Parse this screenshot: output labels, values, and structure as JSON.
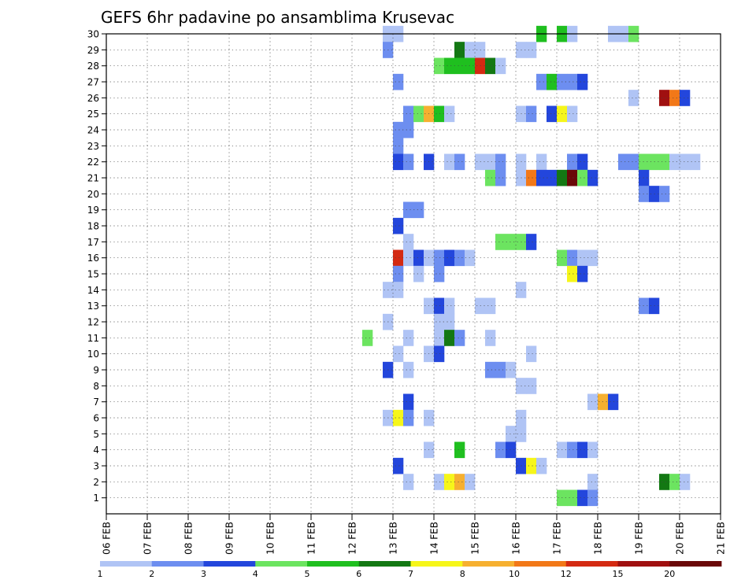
{
  "chart_data": {
    "type": "heatmap",
    "title": "GEFS 6hr padavine po ansamblima Krusevac",
    "x_ticks": [
      "06 FEB",
      "07 FEB",
      "08 FEB",
      "09 FEB",
      "10 FEB",
      "11 FEB",
      "12 FEB",
      "13 FEB",
      "14 FEB",
      "15 FEB",
      "16 FEB",
      "17 FEB",
      "18 FEB",
      "19 FEB",
      "20 FEB",
      "21 FEB"
    ],
    "y_ticks": [
      "1",
      "2",
      "3",
      "4",
      "5",
      "6",
      "7",
      "8",
      "9",
      "10",
      "11",
      "12",
      "13",
      "14",
      "15",
      "16",
      "17",
      "18",
      "19",
      "20",
      "21",
      "22",
      "23",
      "24",
      "25",
      "26",
      "27",
      "28",
      "29",
      "30"
    ],
    "xlim": [
      "06 FEB",
      "21 FEB"
    ],
    "ylim": [
      0,
      30
    ],
    "grid": true,
    "colorbar": {
      "levels": [
        "1",
        "2",
        "3",
        "4",
        "5",
        "6",
        "7",
        "8",
        "10",
        "12",
        "15",
        "20"
      ],
      "colors": [
        "#b0c4f5",
        "#6d8ef0",
        "#2346dc",
        "#6ce460",
        "#1fbf1f",
        "#137813",
        "#f6f61a",
        "#f6b030",
        "#f27818",
        "#d42a12",
        "#a01010",
        "#6a0808"
      ]
    },
    "cells": [
      {
        "m": 30,
        "t": "12 18",
        "c": 0
      },
      {
        "m": 30,
        "t": "13 00",
        "c": 0
      },
      {
        "m": 30,
        "t": "16 12",
        "c": 4
      },
      {
        "m": 30,
        "t": "17 00",
        "c": 4
      },
      {
        "m": 30,
        "t": "17 06",
        "c": 0
      },
      {
        "m": 30,
        "t": "18 06",
        "c": 0
      },
      {
        "m": 30,
        "t": "18 12",
        "c": 0
      },
      {
        "m": 30,
        "t": "18 18",
        "c": 3
      },
      {
        "m": 29,
        "t": "12 18",
        "c": 1
      },
      {
        "m": 29,
        "t": "14 12",
        "c": 5
      },
      {
        "m": 29,
        "t": "14 18",
        "c": 0
      },
      {
        "m": 29,
        "t": "15 00",
        "c": 0
      },
      {
        "m": 29,
        "t": "16 00",
        "c": 0
      },
      {
        "m": 29,
        "t": "16 06",
        "c": 0
      },
      {
        "m": 28,
        "t": "14 00",
        "c": 3
      },
      {
        "m": 28,
        "t": "14 06",
        "c": 4
      },
      {
        "m": 28,
        "t": "14 12",
        "c": 4
      },
      {
        "m": 28,
        "t": "14 18",
        "c": 4
      },
      {
        "m": 28,
        "t": "15 00",
        "c": 9
      },
      {
        "m": 28,
        "t": "15 06",
        "c": 5
      },
      {
        "m": 28,
        "t": "15 12",
        "c": 0
      },
      {
        "m": 27,
        "t": "13 00",
        "c": 1
      },
      {
        "m": 27,
        "t": "16 12",
        "c": 1
      },
      {
        "m": 27,
        "t": "16 18",
        "c": 4
      },
      {
        "m": 27,
        "t": "17 00",
        "c": 1
      },
      {
        "m": 27,
        "t": "17 06",
        "c": 1
      },
      {
        "m": 27,
        "t": "17 12",
        "c": 2
      },
      {
        "m": 26,
        "t": "18 18",
        "c": 0
      },
      {
        "m": 26,
        "t": "19 12",
        "c": 10
      },
      {
        "m": 26,
        "t": "19 18",
        "c": 8
      },
      {
        "m": 26,
        "t": "20 00",
        "c": 2
      },
      {
        "m": 25,
        "t": "13 06",
        "c": 1
      },
      {
        "m": 25,
        "t": "13 12",
        "c": 3
      },
      {
        "m": 25,
        "t": "13 18",
        "c": 7
      },
      {
        "m": 25,
        "t": "14 00",
        "c": 4
      },
      {
        "m": 25,
        "t": "14 06",
        "c": 0
      },
      {
        "m": 25,
        "t": "16 00",
        "c": 0
      },
      {
        "m": 25,
        "t": "16 06",
        "c": 1
      },
      {
        "m": 25,
        "t": "16 18",
        "c": 2
      },
      {
        "m": 25,
        "t": "17 00",
        "c": 6
      },
      {
        "m": 25,
        "t": "17 06",
        "c": 0
      },
      {
        "m": 24,
        "t": "13 00",
        "c": 1
      },
      {
        "m": 24,
        "t": "13 06",
        "c": 1
      },
      {
        "m": 23,
        "t": "13 00",
        "c": 1
      },
      {
        "m": 22,
        "t": "13 00",
        "c": 2
      },
      {
        "m": 22,
        "t": "13 06",
        "c": 1
      },
      {
        "m": 22,
        "t": "13 18",
        "c": 2
      },
      {
        "m": 22,
        "t": "14 06",
        "c": 0
      },
      {
        "m": 22,
        "t": "14 12",
        "c": 1
      },
      {
        "m": 22,
        "t": "15 00",
        "c": 0
      },
      {
        "m": 22,
        "t": "15 06",
        "c": 0
      },
      {
        "m": 22,
        "t": "15 12",
        "c": 1
      },
      {
        "m": 22,
        "t": "16 00",
        "c": 0
      },
      {
        "m": 22,
        "t": "16 12",
        "c": 0
      },
      {
        "m": 22,
        "t": "17 06",
        "c": 1
      },
      {
        "m": 22,
        "t": "17 12",
        "c": 2
      },
      {
        "m": 22,
        "t": "18 12",
        "c": 1
      },
      {
        "m": 22,
        "t": "18 18",
        "c": 1
      },
      {
        "m": 22,
        "t": "19 00",
        "c": 3
      },
      {
        "m": 22,
        "t": "19 06",
        "c": 3
      },
      {
        "m": 22,
        "t": "19 12",
        "c": 3
      },
      {
        "m": 22,
        "t": "19 18",
        "c": 0
      },
      {
        "m": 22,
        "t": "20 00",
        "c": 0
      },
      {
        "m": 22,
        "t": "20 06",
        "c": 0
      },
      {
        "m": 21,
        "t": "15 06",
        "c": 3
      },
      {
        "m": 21,
        "t": "15 12",
        "c": 1
      },
      {
        "m": 21,
        "t": "16 00",
        "c": 0
      },
      {
        "m": 21,
        "t": "16 06",
        "c": 8
      },
      {
        "m": 21,
        "t": "16 12",
        "c": 2
      },
      {
        "m": 21,
        "t": "16 18",
        "c": 2
      },
      {
        "m": 21,
        "t": "17 00",
        "c": 5
      },
      {
        "m": 21,
        "t": "17 06",
        "c": 11
      },
      {
        "m": 21,
        "t": "17 12",
        "c": 3
      },
      {
        "m": 21,
        "t": "17 18",
        "c": 2
      },
      {
        "m": 21,
        "t": "19 00",
        "c": 2
      },
      {
        "m": 20,
        "t": "19 00",
        "c": 1
      },
      {
        "m": 20,
        "t": "19 06",
        "c": 2
      },
      {
        "m": 20,
        "t": "19 12",
        "c": 1
      },
      {
        "m": 19,
        "t": "13 06",
        "c": 1
      },
      {
        "m": 19,
        "t": "13 12",
        "c": 1
      },
      {
        "m": 18,
        "t": "13 00",
        "c": 2
      },
      {
        "m": 17,
        "t": "13 06",
        "c": 0
      },
      {
        "m": 17,
        "t": "15 12",
        "c": 3
      },
      {
        "m": 17,
        "t": "15 18",
        "c": 3
      },
      {
        "m": 17,
        "t": "16 00",
        "c": 3
      },
      {
        "m": 17,
        "t": "16 06",
        "c": 2
      },
      {
        "m": 16,
        "t": "13 00",
        "c": 9
      },
      {
        "m": 16,
        "t": "13 06",
        "c": 0
      },
      {
        "m": 16,
        "t": "13 12",
        "c": 2
      },
      {
        "m": 16,
        "t": "13 18",
        "c": 0
      },
      {
        "m": 16,
        "t": "14 00",
        "c": 1
      },
      {
        "m": 16,
        "t": "14 06",
        "c": 2
      },
      {
        "m": 16,
        "t": "14 12",
        "c": 1
      },
      {
        "m": 16,
        "t": "14 18",
        "c": 0
      },
      {
        "m": 16,
        "t": "17 00",
        "c": 3
      },
      {
        "m": 16,
        "t": "17 06",
        "c": 1
      },
      {
        "m": 16,
        "t": "17 12",
        "c": 0
      },
      {
        "m": 16,
        "t": "17 18",
        "c": 0
      },
      {
        "m": 15,
        "t": "13 00",
        "c": 1
      },
      {
        "m": 15,
        "t": "13 12",
        "c": 0
      },
      {
        "m": 15,
        "t": "14 00",
        "c": 1
      },
      {
        "m": 15,
        "t": "17 06",
        "c": 6
      },
      {
        "m": 15,
        "t": "17 12",
        "c": 2
      },
      {
        "m": 14,
        "t": "12 18",
        "c": 0
      },
      {
        "m": 14,
        "t": "13 00",
        "c": 0
      },
      {
        "m": 14,
        "t": "16 00",
        "c": 0
      },
      {
        "m": 13,
        "t": "13 18",
        "c": 0
      },
      {
        "m": 13,
        "t": "14 00",
        "c": 2
      },
      {
        "m": 13,
        "t": "14 06",
        "c": 0
      },
      {
        "m": 13,
        "t": "15 00",
        "c": 0
      },
      {
        "m": 13,
        "t": "15 06",
        "c": 0
      },
      {
        "m": 13,
        "t": "19 00",
        "c": 1
      },
      {
        "m": 13,
        "t": "19 06",
        "c": 2
      },
      {
        "m": 12,
        "t": "12 18",
        "c": 0
      },
      {
        "m": 12,
        "t": "14 00",
        "c": 0
      },
      {
        "m": 12,
        "t": "14 06",
        "c": 0
      },
      {
        "m": 11,
        "t": "12 06",
        "c": 3
      },
      {
        "m": 11,
        "t": "13 06",
        "c": 0
      },
      {
        "m": 11,
        "t": "14 00",
        "c": 0
      },
      {
        "m": 11,
        "t": "14 06",
        "c": 5
      },
      {
        "m": 11,
        "t": "14 12",
        "c": 1
      },
      {
        "m": 11,
        "t": "15 06",
        "c": 0
      },
      {
        "m": 10,
        "t": "13 00",
        "c": 0
      },
      {
        "m": 10,
        "t": "13 18",
        "c": 0
      },
      {
        "m": 10,
        "t": "14 00",
        "c": 2
      },
      {
        "m": 10,
        "t": "16 06",
        "c": 0
      },
      {
        "m": 9,
        "t": "12 18",
        "c": 2
      },
      {
        "m": 9,
        "t": "13 06",
        "c": 0
      },
      {
        "m": 9,
        "t": "15 06",
        "c": 1
      },
      {
        "m": 9,
        "t": "15 12",
        "c": 1
      },
      {
        "m": 9,
        "t": "15 18",
        "c": 0
      },
      {
        "m": 8,
        "t": "16 00",
        "c": 0
      },
      {
        "m": 8,
        "t": "16 06",
        "c": 0
      },
      {
        "m": 7,
        "t": "13 06",
        "c": 2
      },
      {
        "m": 7,
        "t": "17 18",
        "c": 0
      },
      {
        "m": 7,
        "t": "18 00",
        "c": 7
      },
      {
        "m": 7,
        "t": "18 06",
        "c": 2
      },
      {
        "m": 6,
        "t": "12 18",
        "c": 0
      },
      {
        "m": 6,
        "t": "13 00",
        "c": 6
      },
      {
        "m": 6,
        "t": "13 06",
        "c": 1
      },
      {
        "m": 6,
        "t": "13 18",
        "c": 0
      },
      {
        "m": 6,
        "t": "16 00",
        "c": 0
      },
      {
        "m": 5,
        "t": "15 18",
        "c": 0
      },
      {
        "m": 5,
        "t": "16 00",
        "c": 0
      },
      {
        "m": 4,
        "t": "13 18",
        "c": 0
      },
      {
        "m": 4,
        "t": "14 12",
        "c": 4
      },
      {
        "m": 4,
        "t": "15 12",
        "c": 1
      },
      {
        "m": 4,
        "t": "15 18",
        "c": 2
      },
      {
        "m": 4,
        "t": "17 00",
        "c": 0
      },
      {
        "m": 4,
        "t": "17 06",
        "c": 1
      },
      {
        "m": 4,
        "t": "17 12",
        "c": 2
      },
      {
        "m": 4,
        "t": "17 18",
        "c": 0
      },
      {
        "m": 3,
        "t": "13 00",
        "c": 2
      },
      {
        "m": 3,
        "t": "16 00",
        "c": 2
      },
      {
        "m": 3,
        "t": "16 06",
        "c": 6
      },
      {
        "m": 3,
        "t": "16 12",
        "c": 0
      },
      {
        "m": 2,
        "t": "13 06",
        "c": 0
      },
      {
        "m": 2,
        "t": "14 00",
        "c": 0
      },
      {
        "m": 2,
        "t": "14 06",
        "c": 6
      },
      {
        "m": 2,
        "t": "14 12",
        "c": 7
      },
      {
        "m": 2,
        "t": "14 18",
        "c": 0
      },
      {
        "m": 2,
        "t": "17 18",
        "c": 0
      },
      {
        "m": 2,
        "t": "19 12",
        "c": 5
      },
      {
        "m": 2,
        "t": "19 18",
        "c": 3
      },
      {
        "m": 2,
        "t": "20 00",
        "c": 0
      },
      {
        "m": 1,
        "t": "17 00",
        "c": 3
      },
      {
        "m": 1,
        "t": "17 06",
        "c": 3
      },
      {
        "m": 1,
        "t": "17 12",
        "c": 2
      },
      {
        "m": 1,
        "t": "17 18",
        "c": 1
      }
    ]
  }
}
